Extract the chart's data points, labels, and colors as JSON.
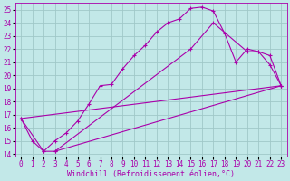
{
  "xlabel": "Windchill (Refroidissement éolien,°C)",
  "xlim": [
    -0.5,
    23.5
  ],
  "ylim": [
    13.8,
    25.5
  ],
  "xticks": [
    0,
    1,
    2,
    3,
    4,
    5,
    6,
    7,
    8,
    9,
    10,
    11,
    12,
    13,
    14,
    15,
    16,
    17,
    18,
    19,
    20,
    21,
    22,
    23
  ],
  "yticks": [
    14,
    15,
    16,
    17,
    18,
    19,
    20,
    21,
    22,
    23,
    24,
    25
  ],
  "bg_color": "#c2e8e8",
  "grid_color": "#a0c8c8",
  "line_color": "#aa00aa",
  "curve_x": [
    0,
    1,
    2,
    3,
    4,
    5,
    6,
    7,
    8,
    9,
    10,
    11,
    12,
    13,
    14,
    15,
    16,
    17,
    18,
    19,
    20,
    21,
    22,
    23
  ],
  "curve_y": [
    16.7,
    15.0,
    14.2,
    15.0,
    15.6,
    16.5,
    17.8,
    19.2,
    19.3,
    20.5,
    21.5,
    22.3,
    23.3,
    24.0,
    24.3,
    25.1,
    25.2,
    24.9,
    23.2,
    21.0,
    22.0,
    21.8,
    21.5,
    19.2
  ],
  "line2_x": [
    0,
    2,
    3,
    23
  ],
  "line2_y": [
    16.7,
    14.2,
    14.2,
    19.2
  ],
  "line3_x": [
    0,
    23
  ],
  "line3_y": [
    16.7,
    19.2
  ],
  "line4_x": [
    3,
    15,
    17,
    20,
    21,
    22,
    23
  ],
  "line4_y": [
    14.2,
    22.0,
    24.0,
    21.8,
    21.8,
    20.8,
    19.2
  ],
  "tick_fontsize": 5.5,
  "label_fontsize": 6.0
}
